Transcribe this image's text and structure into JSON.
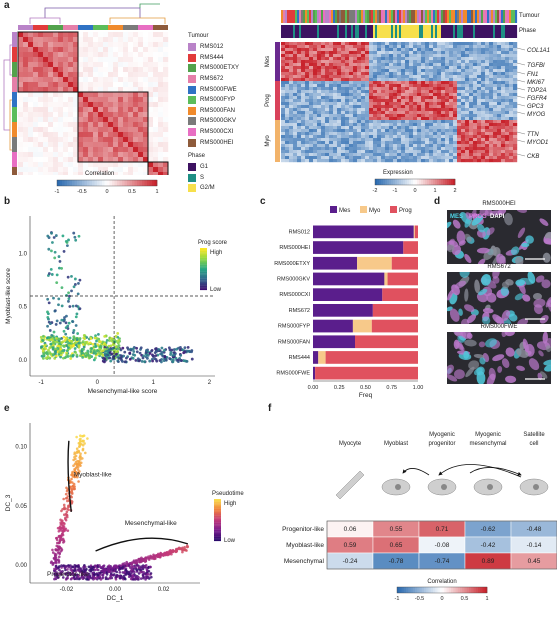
{
  "panels": {
    "a": {
      "label": "a",
      "legend_tumour_title": "Tumour",
      "tumours": [
        {
          "name": "RMS012",
          "color": "#b983c8"
        },
        {
          "name": "RMS444",
          "color": "#e23b3b"
        },
        {
          "name": "RMS000ETXY",
          "color": "#52a24c"
        },
        {
          "name": "RMS672",
          "color": "#e57fa9"
        },
        {
          "name": "RMS000FWE",
          "color": "#2f72c4"
        },
        {
          "name": "RMS000FYP",
          "color": "#5cbd5a"
        },
        {
          "name": "RMS000FAN",
          "color": "#f08a2c"
        },
        {
          "name": "RMS000GKV",
          "color": "#7a7a7a"
        },
        {
          "name": "RMS000CXI",
          "color": "#e86fc3"
        },
        {
          "name": "RMS000HEI",
          "color": "#8e5b3b"
        }
      ],
      "legend_phase_title": "Phase",
      "phases": [
        {
          "name": "G1",
          "color": "#3d1261"
        },
        {
          "name": "S",
          "color": "#1e8f84"
        },
        {
          "name": "G2/M",
          "color": "#f7e04c"
        }
      ],
      "correlation_title": "Correlation",
      "correlation_ticks": [
        "-1",
        "-0.5",
        "0",
        "0.5",
        "1"
      ],
      "heatmap_row_labels": {
        "top": "Tumour",
        "bottom": "Phase"
      },
      "groups": [
        "Mes",
        "Prog",
        "Myo"
      ],
      "genes": [
        "COL1A1",
        "TGFBI",
        "FN1",
        "MKI67",
        "TOP2A",
        "FGFR4",
        "GPC3",
        "MYOG",
        "TTN",
        "MYOD1",
        "CKB"
      ],
      "expression_title": "Expression",
      "expression_ticks": [
        "-2",
        "-1",
        "0",
        "1",
        "2"
      ]
    },
    "b": {
      "label": "b",
      "xlabel": "Mesenchymal-like score",
      "ylabel": "Myoblast-like score",
      "xticks": [
        "-1",
        "0",
        "1",
        "2"
      ],
      "yticks": [
        "0.0",
        "0.5",
        "1.0"
      ],
      "colorbar_title": "Prog score",
      "colorbar_high": "High",
      "colorbar_low": "Low"
    },
    "c": {
      "label": "c",
      "xlabel": "Freq",
      "xticks": [
        "0.00",
        "0.25",
        "0.50",
        "0.75",
        "1.00"
      ],
      "legend": [
        {
          "name": "Mes",
          "color": "#5a1e8c"
        },
        {
          "name": "Myo",
          "color": "#f7c98a"
        },
        {
          "name": "Prog",
          "color": "#e0515f"
        }
      ]
    },
    "d": {
      "label": "d",
      "legend_mes": "MES",
      "legend_prog": "PROG",
      "legend_dapi": "DAPI",
      "images": [
        "RMS000HEI",
        "RMS672",
        "RMS000FWE"
      ]
    },
    "e": {
      "label": "e",
      "xlabel": "DC_1",
      "ylabel": "DC_3",
      "xticks": [
        "-0.02",
        "0.00",
        "0.02"
      ],
      "yticks": [
        "0.00",
        "0.05",
        "0.10"
      ],
      "annotations": [
        "Myoblast-like",
        "Mesenchymal-like",
        "Progenitor-like"
      ],
      "colorbar_title": "Pseudotime",
      "colorbar_high": "High",
      "colorbar_low": "Low"
    },
    "f": {
      "label": "f",
      "cell_types": [
        "Myocyte",
        "Myoblast",
        "Myogenic\nprogenitor",
        "Myogenic\nmesenchymal",
        "Satellite\ncell"
      ],
      "rows": [
        "Progenitor-like",
        "Myoblast-like",
        "Mesenchymal"
      ],
      "correlation_title": "Correlation",
      "correlation_ticks": [
        "-1",
        "-0.5",
        "0",
        "0.5",
        "1"
      ]
    }
  },
  "chart_data": [
    {
      "type": "bar",
      "panel": "c",
      "orientation": "horizontal",
      "stacked": true,
      "categories": [
        "RMS012",
        "RMS000HEI",
        "RMS000ETXY",
        "RMS000GKV",
        "RMS000CXI",
        "RMS672",
        "RMS000FYP",
        "RMS000FAN",
        "RMS444",
        "RMS000FWE"
      ],
      "series": [
        {
          "name": "Mes",
          "values": [
            0.96,
            0.86,
            0.42,
            0.68,
            0.66,
            0.57,
            0.38,
            0.4,
            0.05,
            0.02
          ]
        },
        {
          "name": "Myo",
          "values": [
            0.01,
            0.0,
            0.33,
            0.03,
            0.0,
            0.0,
            0.18,
            0.0,
            0.07,
            0.0
          ]
        },
        {
          "name": "Prog",
          "values": [
            0.03,
            0.14,
            0.25,
            0.29,
            0.34,
            0.43,
            0.44,
            0.6,
            0.88,
            0.98
          ]
        }
      ],
      "xlabel": "Freq",
      "xlim": [
        0,
        1
      ],
      "legend_position": "top"
    },
    {
      "type": "heatmap",
      "panel": "f",
      "columns": [
        "Myocyte",
        "Myoblast",
        "Myogenic progenitor",
        "Myogenic mesenchymal",
        "Satellite cell"
      ],
      "rows": [
        "Progenitor-like",
        "Myoblast-like",
        "Mesenchymal"
      ],
      "values": [
        [
          0.06,
          0.55,
          0.71,
          -0.62,
          -0.48
        ],
        [
          0.59,
          0.65,
          -0.08,
          -0.42,
          -0.14
        ],
        [
          -0.24,
          -0.78,
          -0.74,
          0.89,
          0.45
        ]
      ],
      "vlim": [
        -1,
        1
      ]
    },
    {
      "type": "scatter",
      "panel": "b",
      "xlabel": "Mesenchymal-like score",
      "ylabel": "Myoblast-like score",
      "xlim": [
        -1.2,
        2.1
      ],
      "ylim": [
        -0.15,
        1.35
      ],
      "thresholds": {
        "x": 0.3,
        "y": 0.6
      }
    },
    {
      "type": "scatter",
      "panel": "e",
      "xlabel": "DC_1",
      "ylabel": "DC_3",
      "xlim": [
        -0.035,
        0.035
      ],
      "ylim": [
        -0.015,
        0.12
      ]
    }
  ]
}
